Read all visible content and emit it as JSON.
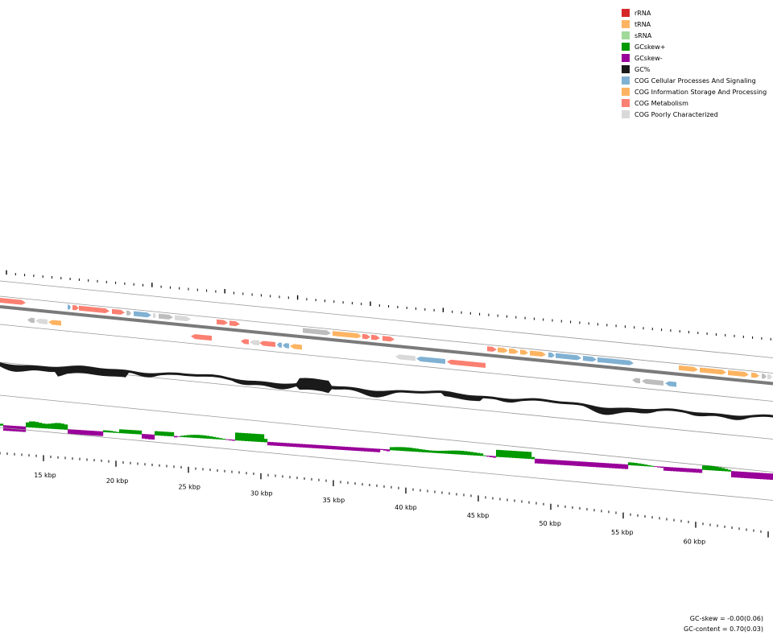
{
  "legend": [
    {
      "label": "rRNA",
      "color": "#d62728"
    },
    {
      "label": "tRNA",
      "color": "#fdb462"
    },
    {
      "label": "sRNA",
      "color": "#a1d99b"
    },
    {
      "label": "GCskew+",
      "color": "#009900"
    },
    {
      "label": "GCskew-",
      "color": "#990099"
    },
    {
      "label": "GC%",
      "color": "#1a1a1a"
    },
    {
      "label": "COG Cellular Processes And Signaling",
      "color": "#80b1d3"
    },
    {
      "label": "COG Information Storage And Processing",
      "color": "#fdb462"
    },
    {
      "label": "COG Metabolism",
      "color": "#fb8072"
    },
    {
      "label": "COG Poorly Characterized",
      "color": "#d9d9d9"
    }
  ],
  "stats": {
    "gc_skew": "GC-skew = -0.00(0.06)",
    "gc_content": "GC-content = 0.70(0.03)"
  },
  "axis_labels": [
    "15 kbp",
    "20 kbp",
    "25 kbp",
    "30 kbp",
    "35 kbp",
    "40 kbp",
    "45 kbp",
    "50 kbp",
    "55 kbp",
    "60 kbp"
  ]
}
